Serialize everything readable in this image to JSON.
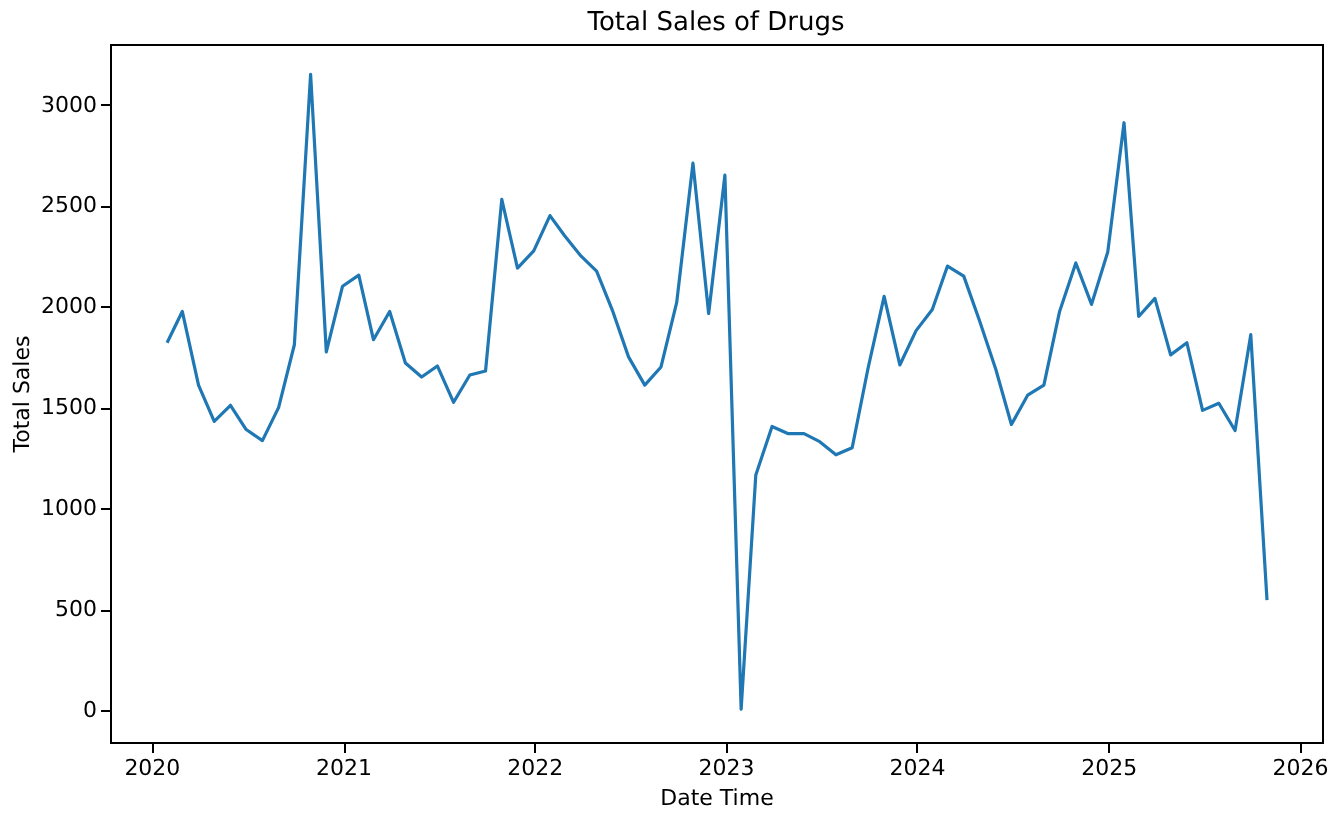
{
  "chart_data": {
    "type": "line",
    "title": "Total Sales of Drugs",
    "xlabel": "Date Time",
    "ylabel": "Total Sales",
    "x": [
      "2020-01-31",
      "2020-02-29",
      "2020-03-31",
      "2020-04-30",
      "2020-05-31",
      "2020-06-30",
      "2020-07-31",
      "2020-08-31",
      "2020-09-30",
      "2020-10-31",
      "2020-11-30",
      "2020-12-31",
      "2021-01-31",
      "2021-02-28",
      "2021-03-31",
      "2021-04-30",
      "2021-05-31",
      "2021-06-30",
      "2021-07-31",
      "2021-08-31",
      "2021-09-30",
      "2021-10-31",
      "2021-11-30",
      "2021-12-31",
      "2022-01-31",
      "2022-02-28",
      "2022-03-31",
      "2022-04-30",
      "2022-05-31",
      "2022-06-30",
      "2022-07-31",
      "2022-08-31",
      "2022-09-30",
      "2022-10-31",
      "2022-11-30",
      "2022-12-31",
      "2023-01-31",
      "2023-02-28",
      "2023-03-31",
      "2023-04-30",
      "2023-05-31",
      "2023-06-30",
      "2023-07-31",
      "2023-08-31",
      "2023-09-30",
      "2023-10-31",
      "2023-11-30",
      "2023-12-31",
      "2024-01-31",
      "2024-02-29",
      "2024-03-31",
      "2024-04-30",
      "2024-05-31",
      "2024-06-30",
      "2024-07-31",
      "2024-08-31",
      "2024-09-30",
      "2024-10-31",
      "2024-11-30",
      "2024-12-31",
      "2025-01-31",
      "2025-02-28",
      "2025-03-31",
      "2025-04-30",
      "2025-05-31",
      "2025-06-30",
      "2025-07-31",
      "2025-08-31",
      "2025-09-30",
      "2025-10-31"
    ],
    "series": [
      {
        "color": "#1f77b4",
        "values": [
          1820,
          1975,
          1610,
          1430,
          1510,
          1390,
          1335,
          1500,
          1810,
          3150,
          1775,
          2100,
          2155,
          1835,
          1975,
          1720,
          1650,
          1705,
          1525,
          1660,
          1680,
          2530,
          2190,
          2275,
          2450,
          2350,
          2250,
          2175,
          1975,
          1750,
          1610,
          1700,
          2020,
          2710,
          1965,
          2650,
          5,
          1165,
          1405,
          1370,
          1370,
          1330,
          1265,
          1300,
          1690,
          2050,
          1710,
          1880,
          1985,
          2200,
          2150,
          1930,
          1690,
          1415,
          1560,
          1610,
          1975,
          2215,
          2010,
          2270,
          2910,
          1950,
          2040,
          1760,
          1820,
          1485,
          1520,
          1385,
          1860,
          545
        ]
      }
    ],
    "xlim": [
      "2019-10-14",
      "2026-02-13"
    ],
    "xticks": [
      "2020",
      "2021",
      "2022",
      "2023",
      "2024",
      "2025",
      "2026"
    ],
    "ylim": [
      -158,
      3300
    ],
    "yticks": [
      0,
      500,
      1000,
      1500,
      2000,
      2500,
      3000
    ],
    "grid": false,
    "legend": false,
    "marker": "none",
    "line_style": "solid"
  }
}
